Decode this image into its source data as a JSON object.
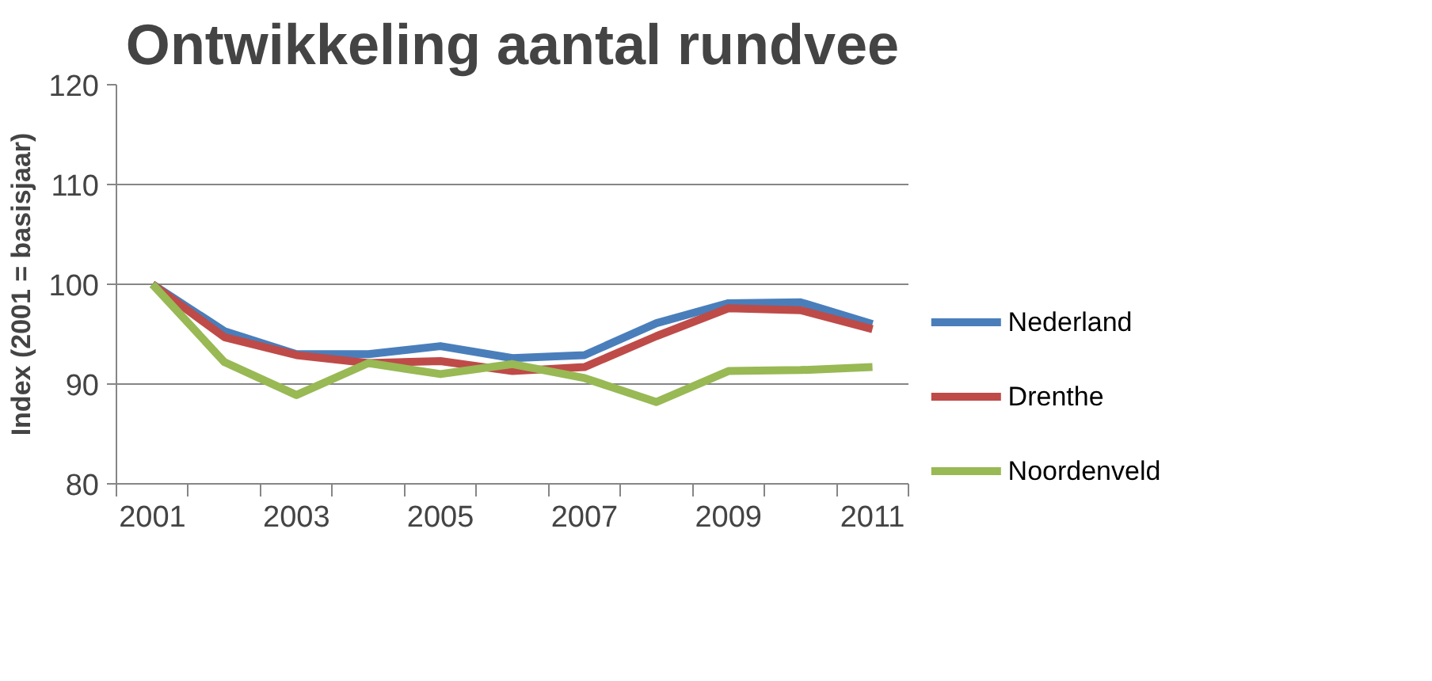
{
  "chart_data": {
    "type": "line",
    "title": "Ontwikkeling aantal rundvee",
    "ylabel": "Index (2001 = basisjaar)",
    "categories": [
      "2001",
      null,
      "2003",
      null,
      "2005",
      null,
      "2007",
      null,
      "2009",
      null,
      "2011"
    ],
    "series": [
      {
        "name": "Nederland",
        "color": "#4a7ebb",
        "values": [
          100,
          95.3,
          93.0,
          93.0,
          93.8,
          92.6,
          92.9,
          96.1,
          98.1,
          98.2,
          96.0
        ]
      },
      {
        "name": "Drenthe",
        "color": "#be4b48",
        "values": [
          100,
          94.7,
          92.9,
          92.1,
          92.3,
          91.3,
          91.7,
          94.8,
          97.6,
          97.4,
          95.5
        ]
      },
      {
        "name": "Noordenveld",
        "color": "#98b954",
        "values": [
          100,
          92.2,
          88.9,
          92.1,
          91.0,
          92.0,
          90.6,
          88.2,
          91.3,
          91.4,
          91.7
        ]
      }
    ],
    "ylim": [
      80,
      120
    ],
    "yticks": [
      80,
      90,
      100,
      110,
      120
    ],
    "grid": "y",
    "legend": "right",
    "marker": "none",
    "line_style": "solid"
  }
}
